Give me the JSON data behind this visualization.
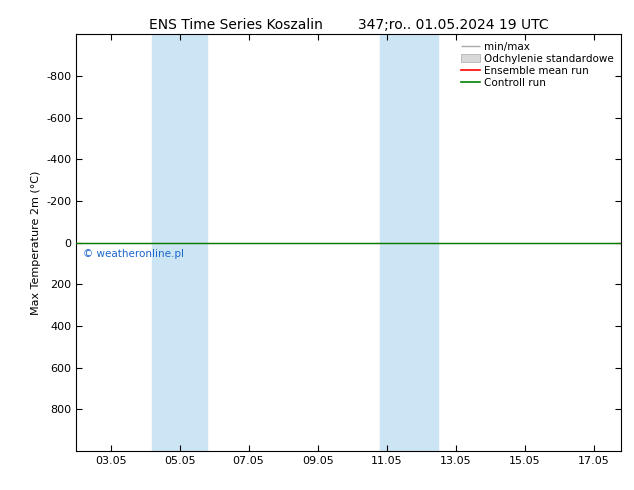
{
  "title": "ENS Time Series Koszalin        347;ro.. 01.05.2024 19 UTC",
  "ylabel": "Max Temperature 2m (°C)",
  "ylim_top": -1000,
  "ylim_bottom": 1000,
  "yticks": [
    -800,
    -600,
    -400,
    -200,
    0,
    200,
    400,
    600,
    800
  ],
  "xtick_labels": [
    "03.05",
    "05.05",
    "07.05",
    "09.05",
    "11.05",
    "13.05",
    "15.05",
    "17.05"
  ],
  "xtick_positions": [
    3,
    5,
    7,
    9,
    11,
    13,
    15,
    17
  ],
  "xlim": [
    2.0,
    17.8
  ],
  "background_color": "#ffffff",
  "plot_bg_color": "#ffffff",
  "shade_regions": [
    {
      "xstart": 4.2,
      "xend": 5.8
    },
    {
      "xstart": 10.8,
      "xend": 12.5
    }
  ],
  "shade_color": "#cce5f5",
  "control_run_y": 0,
  "ensemble_mean_y": 0,
  "watermark": "© weatheronline.pl",
  "watermark_color": "#1a66cc",
  "legend_items": [
    {
      "label": "min/max",
      "color": "#aaaaaa",
      "style": "line"
    },
    {
      "label": "Odchylenie standardowe",
      "color": "#cccccc",
      "style": "fill"
    },
    {
      "label": "Ensemble mean run",
      "color": "red",
      "style": "line"
    },
    {
      "label": "Controll run",
      "color": "green",
      "style": "line"
    }
  ],
  "title_fontsize": 10,
  "axis_fontsize": 8,
  "tick_fontsize": 8,
  "legend_fontsize": 7.5
}
